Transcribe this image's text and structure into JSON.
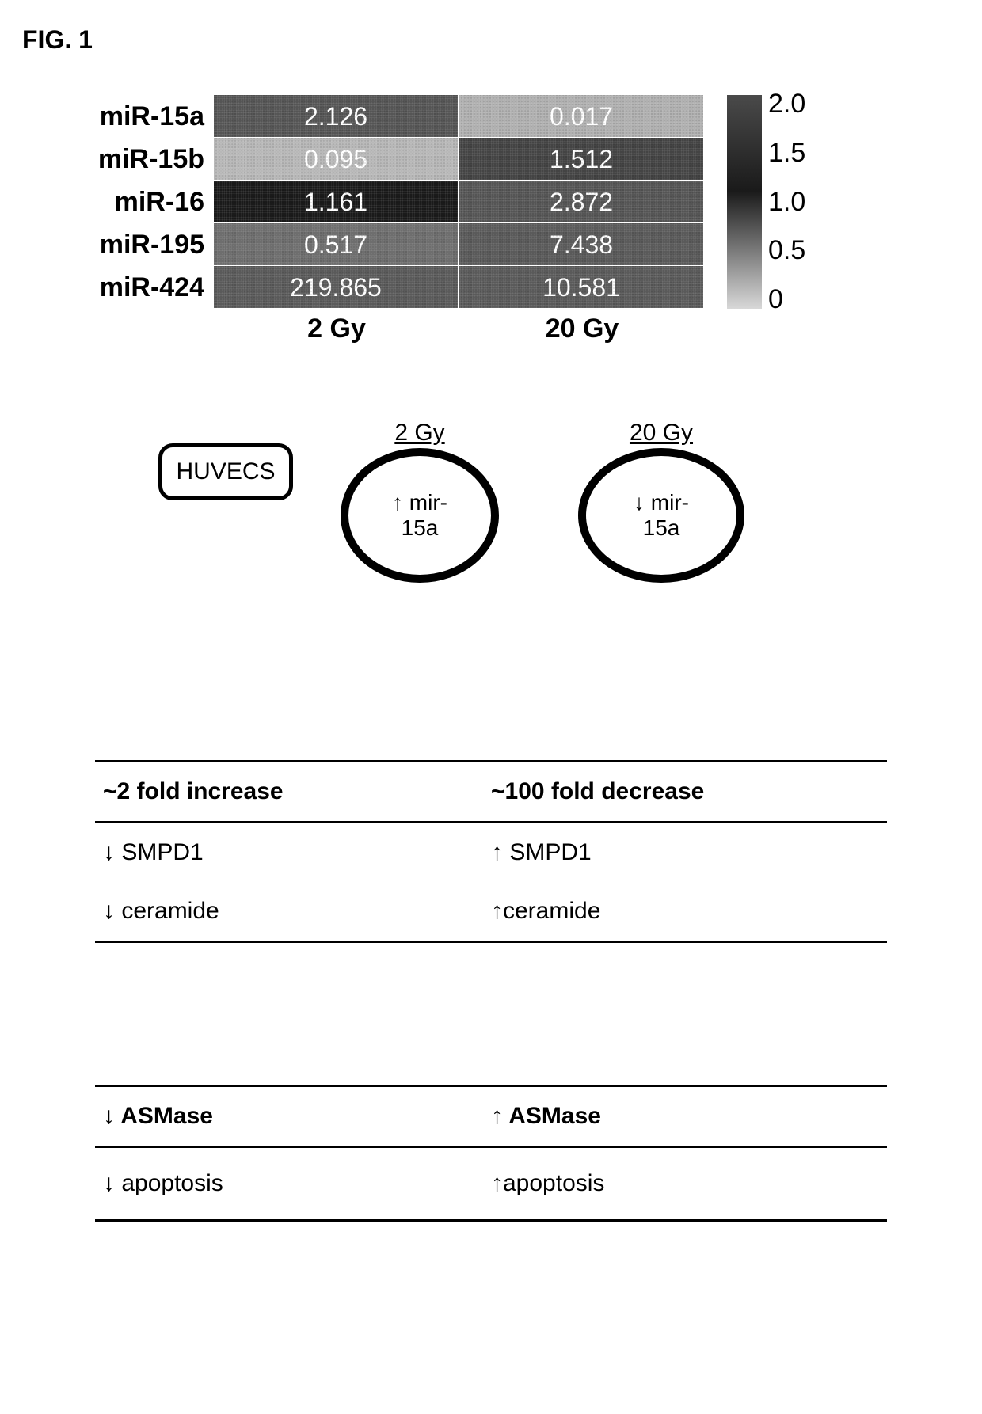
{
  "figure_label": "FIG. 1",
  "heatmap": {
    "type": "heatmap",
    "row_labels": [
      "miR-15a",
      "miR-15b",
      "miR-16",
      "miR-195",
      "miR-424"
    ],
    "col_labels": [
      "2 Gy",
      "20 Gy"
    ],
    "cells": [
      [
        {
          "value": "2.126",
          "bg": "#555555",
          "fg": "#ffffff"
        },
        {
          "value": "0.017",
          "bg": "#b0b0b0",
          "fg": "#ffffff"
        }
      ],
      [
        {
          "value": "0.095",
          "bg": "#b8b8b8",
          "fg": "#ffffff"
        },
        {
          "value": "1.512",
          "bg": "#444444",
          "fg": "#ffffff"
        }
      ],
      [
        {
          "value": "1.161",
          "bg": "#1a1a1a",
          "fg": "#ffffff"
        },
        {
          "value": "2.872",
          "bg": "#555555",
          "fg": "#ffffff"
        }
      ],
      [
        {
          "value": "0.517",
          "bg": "#6e6e6e",
          "fg": "#ffffff"
        },
        {
          "value": "7.438",
          "bg": "#5a5a5a",
          "fg": "#ffffff"
        }
      ],
      [
        {
          "value": "219.865",
          "bg": "#5a5a5a",
          "fg": "#ffffff"
        },
        {
          "value": "10.581",
          "bg": "#5a5a5a",
          "fg": "#ffffff"
        }
      ]
    ],
    "colorbar": {
      "min": 0,
      "max": 2.0,
      "ticks": [
        "2.0",
        "1.5",
        "1.0",
        "0.5",
        "0"
      ],
      "gradient_top": "#4a4a4a",
      "gradient_mid": "#1a1a1a",
      "gradient_bottom": "#d8d8d8"
    },
    "label_fontsize": 34,
    "cell_fontsize": 32,
    "background": "#ffffff"
  },
  "diagram": {
    "huvecs_label": "HUVECS",
    "circle_left": {
      "top_label": "2 Gy",
      "arrow": "↑",
      "line1": "mir-",
      "line2": "15a"
    },
    "circle_right": {
      "top_label": "20 Gy",
      "arrow": "↓",
      "line1": "mir-",
      "line2": "15a"
    }
  },
  "effects_table_1": {
    "header_left": "~2 fold increase",
    "header_right": "~100 fold decrease",
    "rows": [
      {
        "left": "↓ SMPD1",
        "right": "↑ SMPD1"
      },
      {
        "left": "↓ ceramide",
        "right": "↑ceramide"
      }
    ]
  },
  "effects_table_2": {
    "header_left": "↓ ASMase",
    "header_right": "↑ ASMase",
    "rows": [
      {
        "left": "↓ apoptosis",
        "right": "↑apoptosis"
      }
    ]
  },
  "colors": {
    "text": "#000000",
    "background": "#ffffff",
    "border": "#000000"
  }
}
